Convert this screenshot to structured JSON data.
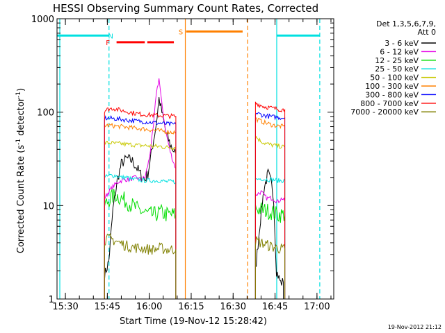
{
  "chart_data": {
    "type": "line",
    "title": "HESSI Observing Summary Count Rates, Corrected",
    "xlabel": "Start Time (19-Nov-12 15:28:42)",
    "ylabel": "Corrected Count Rate (s",
    "ylabel_sup1": "-1",
    "ylabel_mid": " detector",
    "ylabel_sup2": "-1",
    "ylabel_end": ")",
    "yscale": "log",
    "ylim": [
      1,
      1000
    ],
    "y_ticks": [
      {
        "v": 1,
        "label": "1"
      },
      {
        "v": 10,
        "label": "10"
      },
      {
        "v": 100,
        "label": "100"
      },
      {
        "v": 1000,
        "label": "1000"
      }
    ],
    "x_ticks": [
      {
        "v": 930,
        "label": "15:30"
      },
      {
        "v": 945,
        "label": "15:45"
      },
      {
        "v": 960,
        "label": "16:00"
      },
      {
        "v": 975,
        "label": "16:15"
      },
      {
        "v": 990,
        "label": "16:30"
      },
      {
        "v": 1005,
        "label": "16:45"
      },
      {
        "v": 1020,
        "label": "17:00"
      }
    ],
    "x_unit": "minutes after 00:00 UT",
    "xlim": [
      927,
      1026
    ],
    "legend_header": [
      "Det 1,3,5,6,7,9,",
      "Att 0"
    ],
    "legend_position": "right",
    "series": [
      {
        "name": "3 - 6 keV",
        "color": "#000000",
        "segments": [
          [
            [
              944,
              1.8
            ],
            [
              945.5,
              2.5
            ],
            [
              947,
              9
            ],
            [
              948.5,
              18
            ],
            [
              950,
              28
            ],
            [
              952,
              32
            ],
            [
              954,
              30
            ],
            [
              956,
              24
            ],
            [
              957.5,
              20
            ],
            [
              958.5,
              19
            ],
            [
              959.5,
              22
            ],
            [
              961,
              40
            ],
            [
              962.5,
              75
            ],
            [
              963.5,
              140
            ],
            [
              964.5,
              100
            ],
            [
              966,
              60
            ],
            [
              967.5,
              45
            ],
            [
              968.5,
              40
            ],
            [
              969.5,
              36
            ]
          ],
          [
            [
              998,
              2
            ],
            [
              999.5,
              6
            ],
            [
              1001,
              15
            ],
            [
              1002.5,
              22
            ],
            [
              1003.5,
              18
            ],
            [
              1004.5,
              12
            ],
            [
              1005.5,
              2
            ],
            [
              1007,
              1.5
            ],
            [
              1008,
              1.5
            ]
          ]
        ]
      },
      {
        "name": "6 - 12 keV",
        "color": "#e600e6",
        "segments": [
          [
            [
              944,
              12
            ],
            [
              945.5,
              14
            ],
            [
              947,
              16
            ],
            [
              949,
              18
            ],
            [
              951,
              19
            ],
            [
              953,
              19
            ],
            [
              955,
              20
            ],
            [
              957,
              19
            ],
            [
              958.5,
              20
            ],
            [
              960,
              32
            ],
            [
              961.5,
              70
            ],
            [
              962.5,
              160
            ],
            [
              963.5,
              230
            ],
            [
              964.5,
              120
            ],
            [
              966,
              60
            ],
            [
              967.5,
              38
            ],
            [
              968.5,
              30
            ],
            [
              969.5,
              25
            ]
          ],
          [
            [
              998,
              13
            ],
            [
              1000,
              14
            ],
            [
              1002,
              12
            ],
            [
              1004,
              12
            ],
            [
              1006,
              11
            ],
            [
              1007.5,
              12
            ],
            [
              1008.5,
              11
            ]
          ]
        ]
      },
      {
        "name": "12 - 25 keV",
        "color": "#00dd00",
        "segments": [
          [
            [
              944,
              10
            ],
            [
              946,
              12
            ],
            [
              948,
              13
            ],
            [
              950,
              12
            ],
            [
              952,
              11
            ],
            [
              954,
              10
            ],
            [
              956,
              9
            ],
            [
              958,
              8.5
            ],
            [
              960,
              8
            ],
            [
              962,
              8
            ],
            [
              964,
              8.5
            ],
            [
              966,
              8
            ],
            [
              968,
              8
            ],
            [
              969.5,
              8
            ]
          ],
          [
            [
              998,
              9.5
            ],
            [
              1000,
              9
            ],
            [
              1002,
              8.8
            ],
            [
              1004,
              8.5
            ],
            [
              1006,
              8
            ],
            [
              1008.5,
              8
            ]
          ]
        ]
      },
      {
        "name": "25 - 50 keV",
        "color": "#00e0e0",
        "segments": [
          [
            [
              944,
              20
            ],
            [
              946,
              21
            ],
            [
              948,
              21
            ],
            [
              950,
              20
            ],
            [
              952,
              20
            ],
            [
              954,
              19
            ],
            [
              956,
              19
            ],
            [
              958,
              18.5
            ],
            [
              960,
              18.5
            ],
            [
              962,
              18.5
            ],
            [
              964,
              18.5
            ],
            [
              966,
              18
            ],
            [
              968,
              18
            ],
            [
              969.5,
              18
            ]
          ],
          [
            [
              998,
              19
            ],
            [
              1000,
              19.5
            ],
            [
              1002,
              19
            ],
            [
              1004,
              19
            ],
            [
              1006,
              18.5
            ],
            [
              1008.5,
              18.5
            ]
          ]
        ]
      },
      {
        "name": "50 - 100 keV",
        "color": "#c8c800",
        "segments": [
          [
            [
              944,
              47
            ],
            [
              946,
              47
            ],
            [
              948,
              46
            ],
            [
              950,
              46
            ],
            [
              952,
              45
            ],
            [
              954,
              45
            ],
            [
              956,
              44
            ],
            [
              958,
              44
            ],
            [
              960,
              43.5
            ],
            [
              962,
              43
            ],
            [
              964,
              43
            ],
            [
              966,
              42
            ],
            [
              968,
              42
            ],
            [
              969.5,
              42
            ]
          ],
          [
            [
              998,
              55
            ],
            [
              999.5,
              50
            ],
            [
              1001,
              47
            ],
            [
              1003,
              45
            ],
            [
              1005,
              44
            ],
            [
              1007,
              43
            ],
            [
              1008.5,
              42
            ]
          ]
        ]
      },
      {
        "name": "100 - 300 keV",
        "color": "#ff8000",
        "segments": [
          [
            [
              944,
              72
            ],
            [
              946,
              72
            ],
            [
              948,
              71
            ],
            [
              950,
              70
            ],
            [
              952,
              69
            ],
            [
              954,
              68
            ],
            [
              956,
              67
            ],
            [
              958,
              66
            ],
            [
              960,
              65
            ],
            [
              962,
              64
            ],
            [
              964,
              63
            ],
            [
              966,
              62
            ],
            [
              968,
              61
            ],
            [
              969.5,
              61
            ]
          ],
          [
            [
              998,
              85
            ],
            [
              1000,
              80
            ],
            [
              1002,
              76
            ],
            [
              1004,
              73
            ],
            [
              1006,
              71
            ],
            [
              1008.5,
              70
            ]
          ]
        ]
      },
      {
        "name": "300 - 800 keV",
        "color": "#0000ff",
        "segments": [
          [
            [
              944,
              86
            ],
            [
              946,
              86
            ],
            [
              948,
              85
            ],
            [
              950,
              84
            ],
            [
              952,
              82
            ],
            [
              954,
              81
            ],
            [
              956,
              80
            ],
            [
              958,
              79
            ],
            [
              960,
              78
            ],
            [
              962,
              77
            ],
            [
              964,
              76
            ],
            [
              966,
              75
            ],
            [
              968,
              74
            ],
            [
              969.5,
              74
            ]
          ],
          [
            [
              998,
              98
            ],
            [
              1000,
              94
            ],
            [
              1002,
              91
            ],
            [
              1004,
              89
            ],
            [
              1006,
              88
            ],
            [
              1008.5,
              87
            ]
          ]
        ]
      },
      {
        "name": "800 - 7000 keV",
        "color": "#ff0000",
        "segments": [
          [
            [
              944,
              104
            ],
            [
              945.5,
              108
            ],
            [
              947,
              110
            ],
            [
              949,
              106
            ],
            [
              951,
              103
            ],
            [
              953,
              100
            ],
            [
              955,
              97
            ],
            [
              957,
              95
            ],
            [
              959,
              94
            ],
            [
              961,
              93
            ],
            [
              963,
              92
            ],
            [
              965,
              92
            ],
            [
              967,
              91
            ],
            [
              969.5,
              90
            ]
          ],
          [
            [
              998,
              125
            ],
            [
              999.5,
              120
            ],
            [
              1001,
              115
            ],
            [
              1003,
              112
            ],
            [
              1005,
              109
            ],
            [
              1007,
              107
            ],
            [
              1008.5,
              106
            ]
          ]
        ]
      },
      {
        "name": "7000 - 20000 keV",
        "color": "#808000",
        "segments": [
          [
            [
              944,
              4.3
            ],
            [
              946,
              4.4
            ],
            [
              948,
              4.2
            ],
            [
              950,
              3.9
            ],
            [
              952,
              3.7
            ],
            [
              954,
              3.6
            ],
            [
              956,
              3.5
            ],
            [
              958,
              3.5
            ],
            [
              960,
              3.4
            ],
            [
              962,
              3.4
            ],
            [
              964,
              3.5
            ],
            [
              966,
              3.4
            ],
            [
              968,
              3.4
            ],
            [
              969.5,
              3.4
            ]
          ],
          [
            [
              998,
              4.2
            ],
            [
              1000,
              4
            ],
            [
              1002,
              3.8
            ],
            [
              1004,
              3.6
            ],
            [
              1006,
              3.5
            ],
            [
              1008.5,
              3.4
            ]
          ]
        ]
      }
    ],
    "flag_bars": [
      {
        "label": "",
        "color": "#00e0e0",
        "y": 660,
        "x0": 927,
        "x1": 945.6
      },
      {
        "label": "",
        "color": "#00e0e0",
        "y": 660,
        "x0": 1005.6,
        "x1": 1021
      },
      {
        "label": "N",
        "color": "#00e0e0",
        "label_x": 946.2,
        "label_y": 660
      },
      {
        "label": "F",
        "color": "#ff0000",
        "y": 560,
        "x0": 948.3,
        "x1": 958.4,
        "label_x": 945.2,
        "label_y": 560
      },
      {
        "label": "",
        "color": "#ff0000",
        "y": 560,
        "x0": 959.3,
        "x1": 968.8
      },
      {
        "label": "S",
        "color": "#ff8000",
        "y": 730,
        "x0": 973.2,
        "x1": 993.4,
        "label_x": 971.3,
        "label_y": 730
      }
    ],
    "vlines": [
      {
        "x": 945.6,
        "color": "#00e0e0",
        "dashed": true
      },
      {
        "x": 972.9,
        "color": "#ff8000",
        "dashed": false
      },
      {
        "x": 995.2,
        "color": "#ff8000",
        "dashed": true
      },
      {
        "x": 1005.6,
        "color": "#00e0e0",
        "dashed": false
      },
      {
        "x": 1021,
        "color": "#00e0e0",
        "dashed": true
      },
      {
        "x": 928,
        "color": "#00e0e0",
        "dashed": false
      }
    ],
    "timestamp": "19-Nov-2012 21:12"
  }
}
